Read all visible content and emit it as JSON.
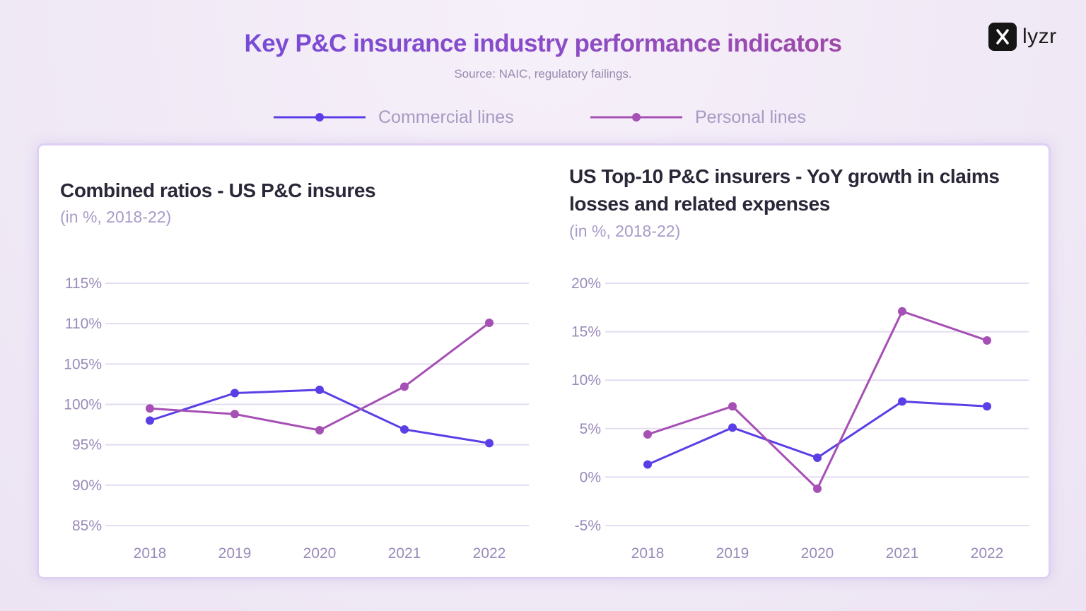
{
  "header": {
    "title": "Key P&C insurance industry performance indicators",
    "source": "Source: NAIC, regulatory failings.",
    "logo_text": "lyzr"
  },
  "legend": {
    "commercial": "Commercial lines",
    "personal": "Personal lines"
  },
  "colors": {
    "commercial": "#5b3fe6",
    "personal": "#a64fb4",
    "grid": "#e4dcf1",
    "panel_border": "#ddd0f3"
  },
  "chart_data": [
    {
      "type": "line",
      "title": "Combined ratios - US P&C insures",
      "subtitle": "(in %, 2018-22)",
      "x": [
        "2018",
        "2019",
        "2020",
        "2021",
        "2022"
      ],
      "yticks": [
        "115%",
        "110%",
        "105%",
        "100%",
        "95%",
        "90%",
        "85%"
      ],
      "ylim": [
        85,
        115
      ],
      "grid": true,
      "series": [
        {
          "name": "Commercial lines",
          "values": [
            98.0,
            101.4,
            101.8,
            96.9,
            95.2
          ]
        },
        {
          "name": "Personal lines",
          "values": [
            99.5,
            98.8,
            96.8,
            102.2,
            110.1
          ]
        }
      ]
    },
    {
      "type": "line",
      "title": "US Top-10 P&C insurers - YoY growth in claims losses and related expenses",
      "subtitle": "(in %, 2018-22)",
      "x": [
        "2018",
        "2019",
        "2020",
        "2021",
        "2022"
      ],
      "yticks": [
        "20%",
        "15%",
        "10%",
        "5%",
        "0%",
        "-5%"
      ],
      "ylim": [
        -5,
        20
      ],
      "grid": true,
      "series": [
        {
          "name": "Commercial lines",
          "values": [
            1.3,
            5.1,
            2.0,
            7.8,
            7.3
          ]
        },
        {
          "name": "Personal lines",
          "values": [
            4.4,
            7.3,
            -1.2,
            17.1,
            14.1
          ]
        }
      ]
    }
  ]
}
